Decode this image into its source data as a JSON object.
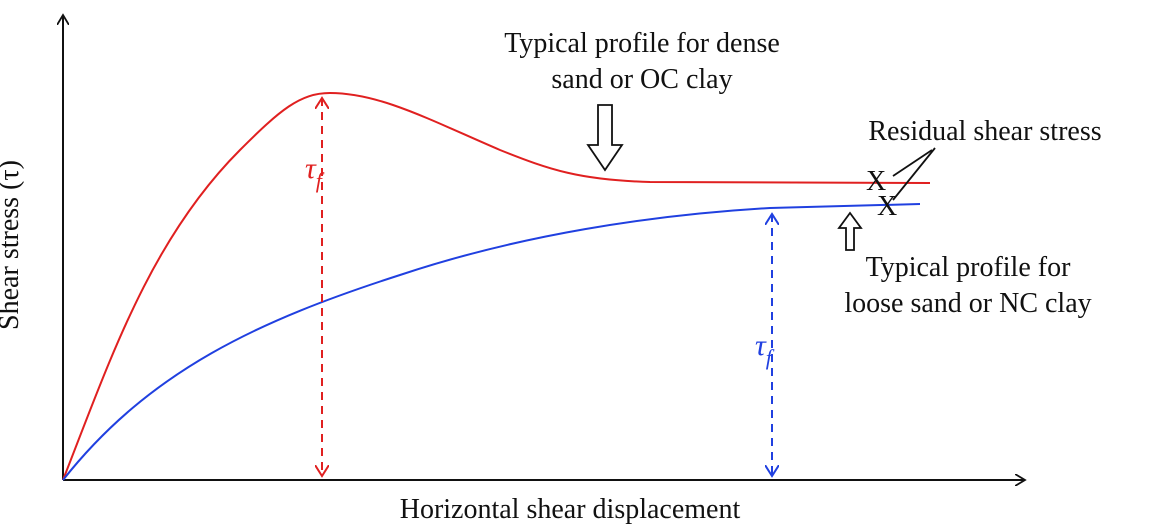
{
  "axes": {
    "y_label": "Shear stress (τ)",
    "x_label": "Horizontal shear displacement"
  },
  "annotations": {
    "dense": [
      "Typical profile for dense",
      "sand or OC clay"
    ],
    "residual": "Residual shear stress",
    "loose": [
      "Typical profile for",
      "loose sand or NC clay"
    ],
    "tau_f_dense": {
      "symbol": "τ",
      "subscript": "f"
    },
    "tau_f_loose": {
      "symbol": "τ",
      "subscript": "f"
    },
    "residual_marks": [
      "X",
      "X"
    ]
  }
}
